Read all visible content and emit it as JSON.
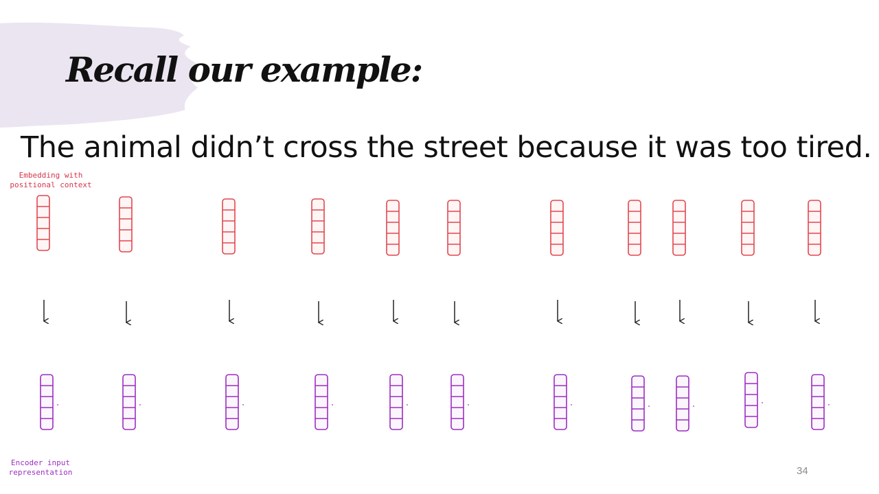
{
  "slide": {
    "title": "Recall our example:",
    "sentence": "The animal didn’t cross the street because it was too tired.",
    "slide_number": "34"
  },
  "labels": {
    "embedding": "Embedding with\npositional context",
    "encoder": "Encoder input\nrepresentation"
  },
  "colors": {
    "brush": "#ebe5f1",
    "embedding_vector": "#e0474f",
    "encoder_vector": "#9b2fbf",
    "arrow": "#222222",
    "title_text": "#111111"
  },
  "diagram": {
    "token_count": 11,
    "cells_per_vector": 5
  }
}
